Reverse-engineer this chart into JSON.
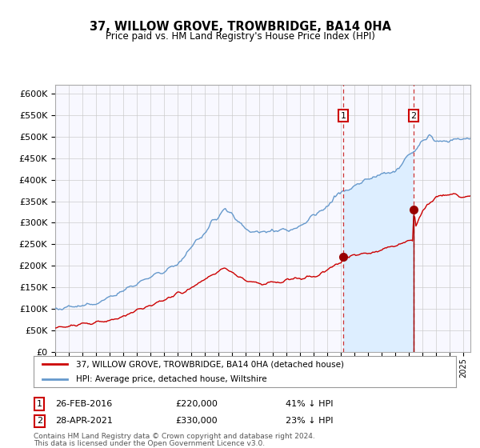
{
  "title": "37, WILLOW GROVE, TROWBRIDGE, BA14 0HA",
  "subtitle": "Price paid vs. HM Land Registry's House Price Index (HPI)",
  "legend_line1": "37, WILLOW GROVE, TROWBRIDGE, BA14 0HA (detached house)",
  "legend_line2": "HPI: Average price, detached house, Wiltshire",
  "annotation1_date": "26-FEB-2016",
  "annotation1_price": 220000,
  "annotation1_hpi_pct": "41% ↓ HPI",
  "annotation2_date": "28-APR-2021",
  "annotation2_price": 330000,
  "annotation2_hpi_pct": "23% ↓ HPI",
  "footnote1": "Contains HM Land Registry data © Crown copyright and database right 2024.",
  "footnote2": "This data is licensed under the Open Government Licence v3.0.",
  "hpi_color": "#6699cc",
  "hpi_fill_color": "#ddeeff",
  "price_color": "#cc0000",
  "marker_color": "#990000",
  "dashed_line_color": "#cc3333",
  "grid_color": "#cccccc",
  "background_color": "#ffffff",
  "plot_bg_color": "#f8f8ff",
  "ylim": [
    0,
    620000
  ],
  "xlim_start": 1995.0,
  "xlim_end": 2025.5,
  "sale1_year": 2016.15,
  "sale2_year": 2021.32
}
